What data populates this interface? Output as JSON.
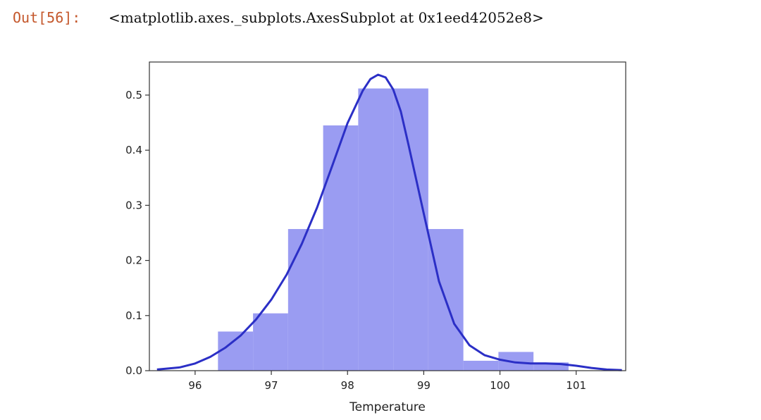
{
  "cell": {
    "prompt": "Out[56]:",
    "output_text": "<matplotlib.axes._subplots.AxesSubplot at 0x1eed42052e8>"
  },
  "chart_data": {
    "type": "bar",
    "title": "",
    "xlabel": "Temperature",
    "ylabel": "",
    "xlim": [
      95.4,
      101.65
    ],
    "ylim": [
      0.0,
      0.56
    ],
    "xticks": [
      96,
      97,
      98,
      99,
      100,
      101
    ],
    "xtick_labels": [
      "96",
      "97",
      "98",
      "99",
      "100",
      "101"
    ],
    "yticks": [
      0.0,
      0.1,
      0.2,
      0.3,
      0.4,
      0.5
    ],
    "ytick_labels": [
      "0.0",
      "0.1",
      "0.2",
      "0.3",
      "0.4",
      "0.5"
    ],
    "grid": false,
    "bars": [
      {
        "x0": 96.3,
        "x1": 96.76,
        "value": 0.071
      },
      {
        "x0": 96.76,
        "x1": 97.22,
        "value": 0.104
      },
      {
        "x0": 97.22,
        "x1": 97.68,
        "value": 0.257
      },
      {
        "x0": 97.68,
        "x1": 98.14,
        "value": 0.445
      },
      {
        "x0": 98.14,
        "x1": 98.6,
        "value": 0.512
      },
      {
        "x0": 98.6,
        "x1": 99.06,
        "value": 0.512
      },
      {
        "x0": 99.06,
        "x1": 99.52,
        "value": 0.257
      },
      {
        "x0": 99.52,
        "x1": 99.98,
        "value": 0.018
      },
      {
        "x0": 99.98,
        "x1": 100.44,
        "value": 0.034
      },
      {
        "x0": 100.44,
        "x1": 100.9,
        "value": 0.015
      }
    ],
    "kde": {
      "x": [
        95.5,
        95.8,
        96.0,
        96.2,
        96.4,
        96.6,
        96.8,
        97.0,
        97.2,
        97.4,
        97.6,
        97.8,
        98.0,
        98.2,
        98.3,
        98.4,
        98.5,
        98.6,
        98.7,
        98.8,
        99.0,
        99.2,
        99.4,
        99.6,
        99.8,
        100.0,
        100.2,
        100.4,
        100.6,
        100.8,
        101.0,
        101.2,
        101.4,
        101.6
      ],
      "y": [
        0.002,
        0.006,
        0.013,
        0.025,
        0.042,
        0.064,
        0.093,
        0.129,
        0.174,
        0.23,
        0.296,
        0.372,
        0.449,
        0.508,
        0.529,
        0.537,
        0.532,
        0.51,
        0.47,
        0.41,
        0.285,
        0.162,
        0.085,
        0.046,
        0.028,
        0.02,
        0.015,
        0.013,
        0.013,
        0.012,
        0.009,
        0.005,
        0.002,
        0.001
      ]
    },
    "colors": {
      "bar_fill": "#9a9cf2",
      "kde_line": "#2b2fc6",
      "axes": "#333333"
    }
  }
}
